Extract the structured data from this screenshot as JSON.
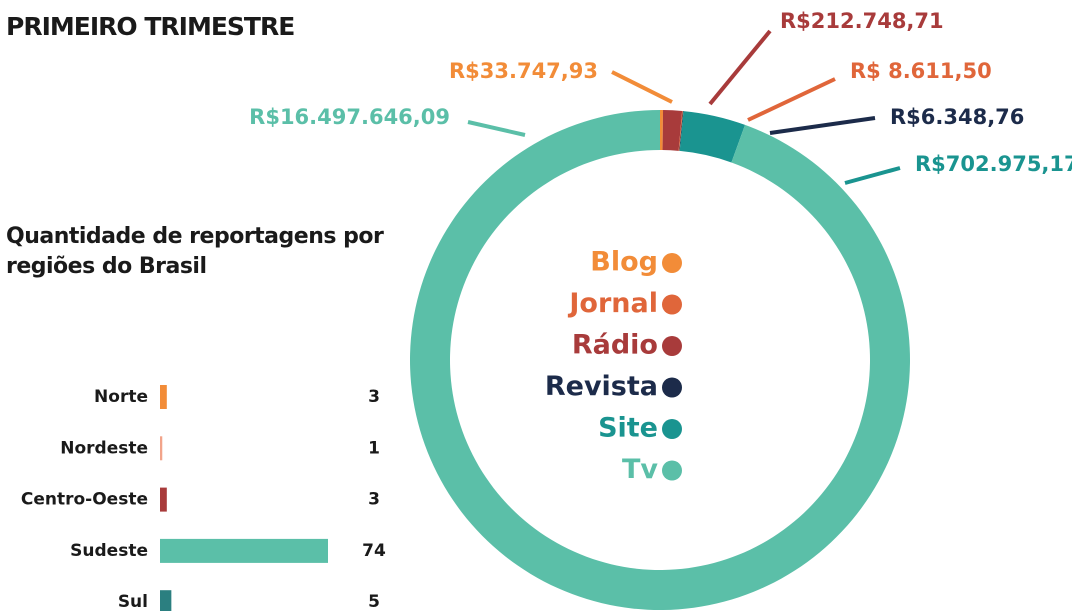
{
  "chart_data": [
    {
      "type": "donut",
      "title": "PRIMEIRO TRIMESTRE",
      "series": [
        {
          "name": "Blog",
          "color": "#f28c38",
          "values": [
            33747.93
          ],
          "value_labels": [
            "R$33.747,93"
          ]
        },
        {
          "name": "Jornal",
          "color": "#e0663a",
          "values": [
            8611.5
          ],
          "value_labels": [
            "R$ 8.611,50"
          ]
        },
        {
          "name": "Rádio",
          "color": "#a83b3b",
          "values": [
            212748.71
          ],
          "value_labels": [
            "R$212.748,71"
          ]
        },
        {
          "name": "Revista",
          "color": "#1c2b4a",
          "values": [
            6348.76
          ],
          "value_labels": [
            "R$6.348,76"
          ]
        },
        {
          "name": "Site",
          "color": "#1a9490",
          "values": [
            702975.17
          ],
          "value_labels": [
            "R$702.975,17"
          ]
        },
        {
          "name": "Tv",
          "color": "#5bbfa8",
          "values": [
            16497646.09
          ],
          "value_labels": [
            "R$16.497.646,09"
          ]
        }
      ]
    },
    {
      "type": "hbar",
      "title": "Quantidade de reportagens por regiões do Brasil",
      "categories": [
        "Norte",
        "Nordeste",
        "Centro-Oeste",
        "Sudeste",
        "Sul"
      ],
      "values": [
        3,
        1,
        3,
        74,
        5
      ],
      "colors": [
        "#f28c38",
        "#f2a48a",
        "#a83b3b",
        "#5bbfa8",
        "#2b7f80"
      ]
    }
  ]
}
